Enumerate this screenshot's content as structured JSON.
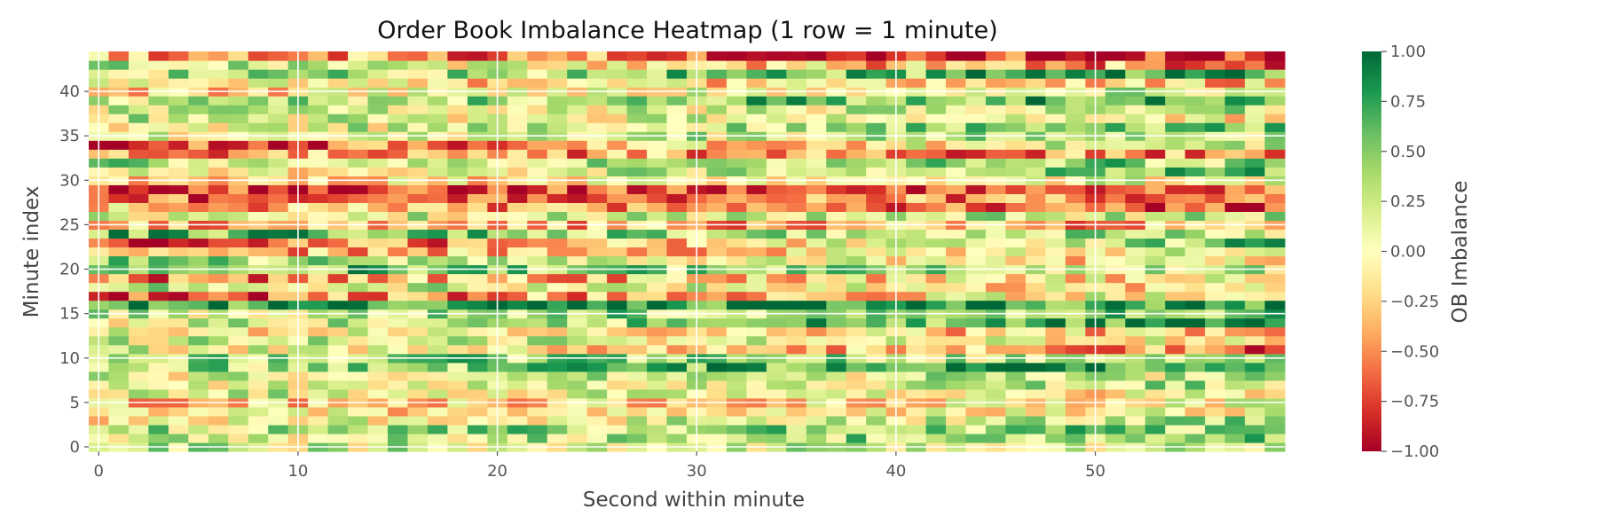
{
  "chart_data": {
    "type": "heatmap",
    "title": "Order Book Imbalance Heatmap (1 row = 1 minute)",
    "xlabel": "Second within minute",
    "ylabel": "Minute index",
    "x_ticks": [
      0,
      10,
      20,
      30,
      40,
      50
    ],
    "y_ticks": [
      0,
      5,
      10,
      15,
      20,
      25,
      30,
      35,
      40
    ],
    "xlim": [
      -0.5,
      59.5
    ],
    "ylim": [
      -0.5,
      44.5
    ],
    "n_cols": 60,
    "n_rows": 45,
    "grid": true,
    "colormap": "RdYlGn",
    "colorbar": {
      "label": "OB Imbalance",
      "range": [
        -1.0,
        1.0
      ],
      "ticks": [
        "1.00",
        "0.75",
        "0.50",
        "0.25",
        "0.00",
        "−0.25",
        "−0.50",
        "−0.75",
        "−1.00"
      ],
      "tick_values": [
        1.0,
        0.75,
        0.5,
        0.25,
        0.0,
        -0.25,
        -0.5,
        -0.75,
        -1.0
      ]
    },
    "row_trends": [
      [
        0.2,
        0.2
      ],
      [
        0.1,
        0.5
      ],
      [
        0.3,
        0.4
      ],
      [
        0.0,
        0.3
      ],
      [
        -0.2,
        0.1
      ],
      [
        -0.3,
        0.0
      ],
      [
        0.2,
        -0.1
      ],
      [
        0.0,
        0.3
      ],
      [
        0.1,
        0.2
      ],
      [
        0.3,
        0.8
      ],
      [
        0.5,
        0.2
      ],
      [
        0.1,
        -0.6
      ],
      [
        0.2,
        0.0
      ],
      [
        0.0,
        -0.3
      ],
      [
        0.1,
        0.8
      ],
      [
        0.2,
        0.6
      ],
      [
        0.8,
        0.8
      ],
      [
        -0.7,
        0.1
      ],
      [
        0.3,
        -0.2
      ],
      [
        -0.6,
        0.0
      ],
      [
        0.6,
        0.2
      ],
      [
        0.4,
        -0.2
      ],
      [
        -0.5,
        0.1
      ],
      [
        -0.9,
        0.5
      ],
      [
        0.6,
        0.3
      ],
      [
        -0.3,
        -0.4
      ],
      [
        0.1,
        0.2
      ],
      [
        -0.3,
        -0.8
      ],
      [
        -0.7,
        -0.4
      ],
      [
        -0.8,
        -0.5
      ],
      [
        -0.2,
        0.1
      ],
      [
        -0.1,
        0.6
      ],
      [
        0.3,
        0.4
      ],
      [
        -0.4,
        -0.5
      ],
      [
        -0.8,
        0.3
      ],
      [
        0.1,
        0.3
      ],
      [
        0.0,
        0.6
      ],
      [
        0.2,
        -0.1
      ],
      [
        0.1,
        0.2
      ],
      [
        0.2,
        0.7
      ],
      [
        -0.2,
        0.3
      ],
      [
        -0.1,
        -0.3
      ],
      [
        0.2,
        0.7
      ],
      [
        0.3,
        -0.6
      ],
      [
        -0.3,
        -0.9
      ]
    ],
    "noise": 0.45,
    "seed": 20240101
  }
}
